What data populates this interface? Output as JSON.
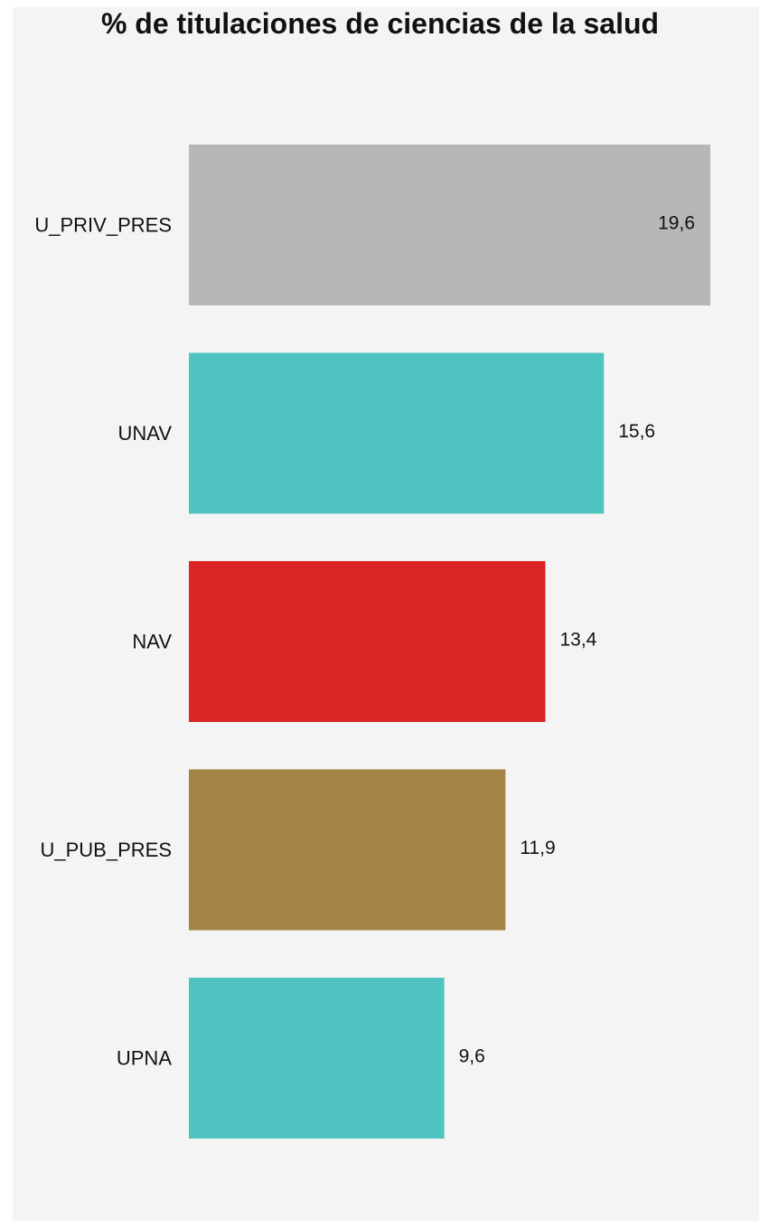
{
  "chart_data": {
    "type": "bar",
    "orientation": "horizontal",
    "title": "% de titulaciones de ciencias de la salud",
    "xlabel": "",
    "ylabel": "",
    "grid": false,
    "xlim": [
      0,
      19.6
    ],
    "categories": [
      "U_PRIV_PRES",
      "UNAV",
      "NAV",
      "U_PUB_PRES",
      "UPNA"
    ],
    "values": [
      19.6,
      15.6,
      13.4,
      11.9,
      9.6
    ],
    "value_labels": [
      "19,6",
      "15,6",
      "13,4",
      "11,9",
      "9,6"
    ],
    "colors": [
      "#b7b7b7",
      "#4fc3c0",
      "#db2426",
      "#a48446",
      "#4fc3c0"
    ],
    "background": "#f4f4f4"
  }
}
